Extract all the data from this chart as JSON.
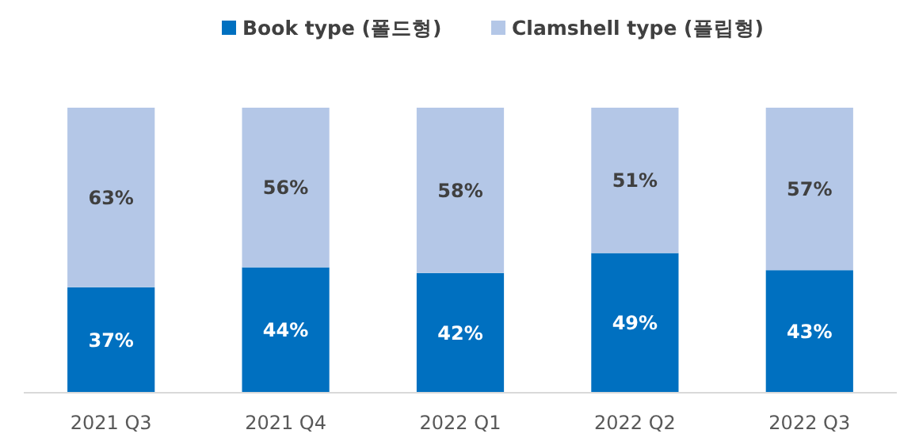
{
  "chart_data": {
    "type": "bar",
    "stacked": true,
    "categories": [
      "2021 Q3",
      "2021 Q4",
      "2022 Q1",
      "2022 Q2",
      "2022 Q3"
    ],
    "series": [
      {
        "name": "Book type (폴드형)",
        "color": "#0070c0",
        "values": [
          37,
          44,
          42,
          49,
          43
        ],
        "value_labels": [
          "37%",
          "44%",
          "42%",
          "49%",
          "43%"
        ]
      },
      {
        "name": "Clamshell type (플립형)",
        "color": "#b4c7e7",
        "values": [
          63,
          56,
          58,
          51,
          57
        ],
        "value_labels": [
          "63%",
          "56%",
          "58%",
          "51%",
          "57%"
        ]
      }
    ],
    "legend": "top"
  }
}
